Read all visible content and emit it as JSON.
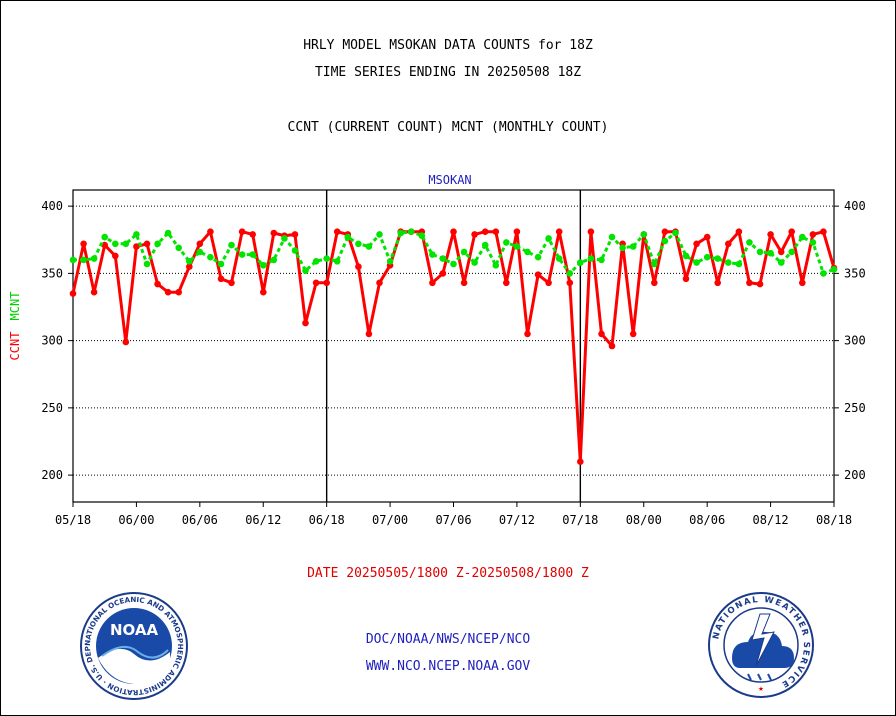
{
  "header": {
    "title_line1": "HRLY MODEL MSOKAN DATA COUNTS for 18Z",
    "title_line2": "TIME SERIES ENDING IN 20250508 18Z",
    "subtitle": "CCNT (CURRENT COUNT) MCNT (MONTHLY COUNT)"
  },
  "footer": {
    "date_range": "DATE 20250505/1800 Z-20250508/1800 Z",
    "link1": "DOC/NOAA/NWS/NCEP/NCO",
    "link2": "WWW.NCO.NCEP.NOAA.GOV"
  },
  "logos": {
    "noaa_left": {
      "center_text": "NOAA",
      "ring_text": "NATIONAL OCEANIC AND ATMOSPHERIC ADMINISTRATION · U.S. DEPARTMENT OF COMMERCE ·"
    },
    "nws_right": {
      "ring_text": "NATIONAL WEATHER SERVICE"
    }
  },
  "colors": {
    "ccnt": "#ff0000",
    "mcnt": "#00e400",
    "title_blue": "#1f1fbf",
    "date_red": "#e00000"
  },
  "chart_data": {
    "type": "line",
    "title": "MSOKAN",
    "ylabel_ccnt": "CCNT",
    "ylabel_mcnt": "MCNT",
    "ylim": [
      180,
      412
    ],
    "yticks": [
      200,
      250,
      300,
      350,
      400
    ],
    "x_tick_labels": [
      "05/18",
      "06/00",
      "06/06",
      "06/12",
      "06/18",
      "07/00",
      "07/06",
      "07/12",
      "07/18",
      "08/00",
      "08/06",
      "08/12",
      "08/18"
    ],
    "day_dividers_hours": [
      24,
      48
    ],
    "grid": "horizontal-dotted",
    "x_unit": "hours since 05/18 18Z",
    "series": [
      {
        "name": "CCNT",
        "color": "#ff0000",
        "values": [
          335,
          372,
          336,
          371,
          363,
          299,
          370,
          372,
          342,
          336,
          336,
          355,
          372,
          381,
          346,
          343,
          381,
          379,
          336,
          380,
          378,
          379,
          313,
          343,
          343,
          381,
          379,
          355,
          305,
          343,
          356,
          381,
          381,
          381,
          343,
          350,
          381,
          343,
          379,
          381,
          381,
          343,
          381,
          305,
          349,
          343,
          381,
          343,
          210,
          381,
          305,
          296,
          372,
          305,
          379,
          343,
          381,
          381,
          346,
          372,
          377,
          343,
          372,
          381,
          343,
          342,
          379,
          366,
          381,
          343,
          379,
          381,
          354
        ]
      },
      {
        "name": "MCNT",
        "color": "#00e400",
        "values": [
          360,
          360,
          361,
          377,
          372,
          372,
          379,
          357,
          372,
          380,
          369,
          359,
          366,
          362,
          357,
          371,
          364,
          364,
          356,
          360,
          376,
          367,
          352,
          359,
          361,
          359,
          377,
          372,
          370,
          379,
          359,
          380,
          381,
          378,
          364,
          361,
          357,
          366,
          358,
          371,
          356,
          373,
          370,
          366,
          362,
          376,
          361,
          350,
          358,
          361,
          360,
          377,
          369,
          370,
          379,
          357,
          374,
          380,
          363,
          358,
          362,
          361,
          358,
          357,
          373,
          366,
          365,
          358,
          366,
          377,
          373,
          350,
          353
        ]
      }
    ]
  }
}
